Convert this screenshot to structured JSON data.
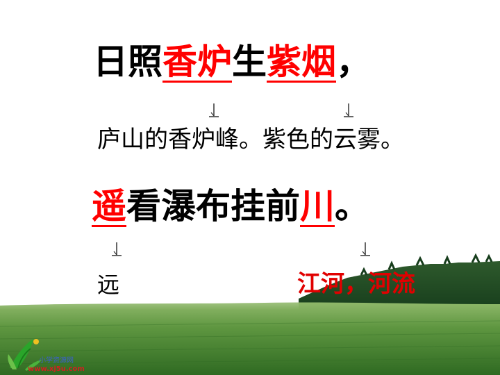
{
  "line1": {
    "c1": "日照",
    "c2": "香炉",
    "c3": "生",
    "c4": "紫烟",
    "c5": "，"
  },
  "explanation1": "庐山的香炉峰。紫色的云雾。",
  "line2": {
    "c1": "遥",
    "c2": "看瀑布挂前",
    "c3": "川",
    "c4": "。"
  },
  "word_far": "远",
  "word_river": "江河，河流",
  "logo": {
    "name": "小学资源网",
    "url": "www.xj5u.com"
  },
  "colors": {
    "highlight": "#ff0000",
    "text": "#000000",
    "grass": "#3f7a2a",
    "trees": "#1f4a23"
  }
}
